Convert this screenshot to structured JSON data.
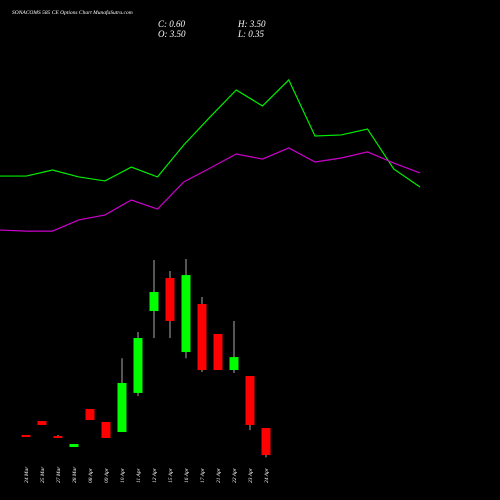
{
  "header": {
    "title": "SONACOMS 585 CE Options  Chart MunafaSutra.com",
    "close": "C: 0.60",
    "open": "O: 3.50",
    "high": "H: 3.50",
    "low": "L: 0.35"
  },
  "chart_data": [
    {
      "type": "line",
      "categories": [
        null,
        null,
        null,
        null,
        null,
        null,
        null,
        null,
        null,
        null,
        null,
        null,
        null,
        null,
        null,
        null,
        null
      ],
      "ylim": [
        0,
        100
      ],
      "series": [
        {
          "color": "#00ee00",
          "values": [
            35.2,
            35.2,
            38.1,
            34.8,
            32.9,
            39.5,
            34.8,
            50.0,
            63.3,
            76.2,
            68.6,
            81.0,
            54.3,
            54.8,
            57.6,
            38.6,
            30.0
          ]
        },
        {
          "color": "#cc00cc",
          "values": [
            9.5,
            9.0,
            9.0,
            14.3,
            16.7,
            23.8,
            19.5,
            32.4,
            39.0,
            45.7,
            43.3,
            48.6,
            41.9,
            43.8,
            46.7,
            41.4,
            36.7
          ]
        }
      ]
    },
    {
      "type": "candlestick",
      "categories": [
        "24 Mar",
        "25 Mar",
        "27 Mar",
        "28 Mar",
        "08 Apr",
        "09 Apr",
        "10 Apr",
        "11 Apr",
        "12 Apr",
        "15 Apr",
        "16 Apr",
        "17 Apr",
        "21 Apr",
        "22 Apr",
        "23 Apr",
        "24 Apr"
      ],
      "ylim": [
        0,
        22
      ],
      "up_color": "#00ff00",
      "down_color": "#ff0000",
      "open": [
        2.75,
        4.25,
        2.64,
        1.46,
        5.54,
        4.15,
        3.07,
        7.27,
        16.07,
        19.61,
        11.66,
        16.82,
        13.6,
        9.73,
        9.09,
        3.5
      ],
      "high": [
        2.75,
        4.25,
        2.75,
        1.78,
        5.54,
        4.15,
        11.0,
        13.81,
        21.55,
        20.37,
        21.65,
        17.57,
        13.6,
        15.0,
        9.09,
        3.5
      ],
      "low": [
        2.54,
        3.82,
        2.43,
        1.46,
        4.36,
        2.43,
        3.07,
        6.94,
        13.17,
        13.17,
        11.0,
        9.52,
        9.73,
        9.41,
        3.28,
        0.35
      ],
      "close": [
        2.54,
        3.82,
        2.43,
        1.78,
        4.36,
        2.43,
        8.34,
        13.17,
        18.11,
        15.0,
        19.93,
        9.73,
        9.73,
        11.12,
        3.82,
        0.6
      ]
    }
  ]
}
